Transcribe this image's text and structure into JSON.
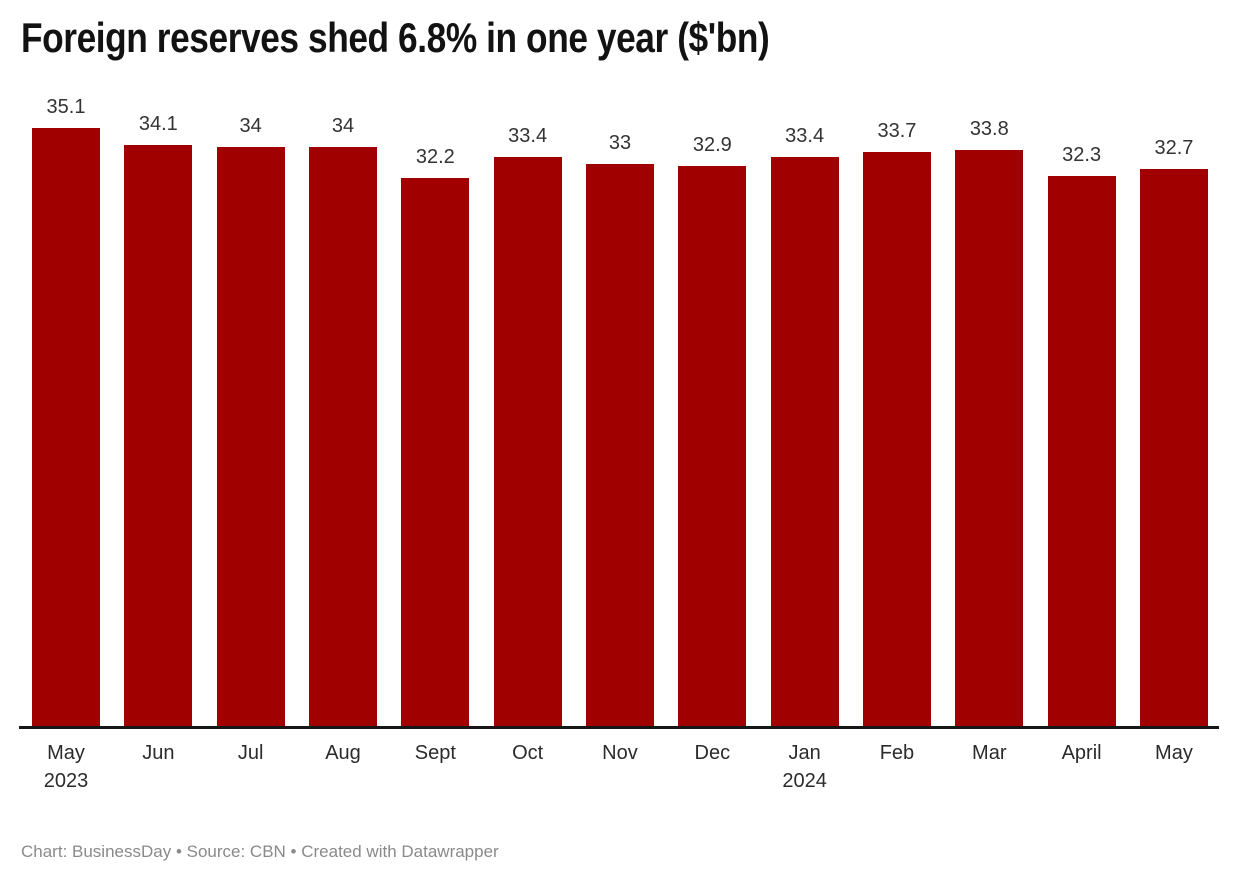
{
  "title": "Foreign reserves shed 6.8% in one year ($'bn)",
  "footer": {
    "credit": "Chart: BusinessDay • Source: CBN • Created with Datawrapper"
  },
  "chart_data": {
    "type": "bar",
    "title": "Foreign reserves shed 6.8% in one year ($'bn)",
    "categories": [
      "May 2023",
      "Jun",
      "Jul",
      "Aug",
      "Sept",
      "Oct",
      "Nov",
      "Dec",
      "Jan 2024",
      "Feb",
      "Mar",
      "April",
      "May"
    ],
    "tick_lines": [
      [
        "May",
        "2023"
      ],
      [
        "Jun"
      ],
      [
        "Jul"
      ],
      [
        "Aug"
      ],
      [
        "Sept"
      ],
      [
        "Oct"
      ],
      [
        "Nov"
      ],
      [
        "Dec"
      ],
      [
        "Jan",
        "2024"
      ],
      [
        "Feb"
      ],
      [
        "Mar"
      ],
      [
        "April"
      ],
      [
        "May"
      ]
    ],
    "values": [
      35.1,
      34.1,
      34,
      34,
      32.2,
      33.4,
      33,
      32.9,
      33.4,
      33.7,
      33.8,
      32.3,
      32.7
    ],
    "value_labels": [
      "35.1",
      "34.1",
      "34",
      "34",
      "32.2",
      "33.4",
      "33",
      "32.9",
      "33.4",
      "33.7",
      "33.8",
      "32.3",
      "32.7"
    ],
    "xlabel": "",
    "ylabel": "",
    "ylim": [
      0,
      35.1
    ],
    "grid": false,
    "legend": "none",
    "data_labels": "above bars",
    "bar_color": "#a00000",
    "label_color": "#333333",
    "axis_color": "#161616"
  }
}
